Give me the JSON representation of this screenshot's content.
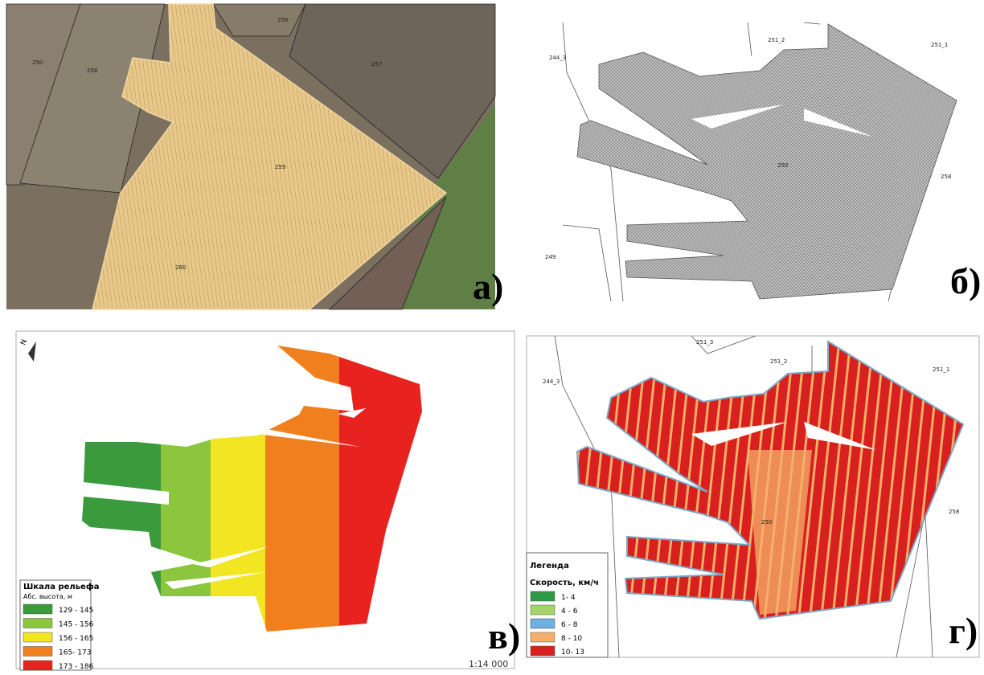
{
  "panels": [
    {
      "label": "а)",
      "fields": [
        "250",
        "258",
        "256",
        "257",
        "259",
        "260"
      ]
    },
    {
      "label": "б)",
      "fields": [
        "251_2",
        "251_1",
        "244_3",
        "250",
        "258",
        "249"
      ]
    },
    {
      "label": "в)",
      "north": "N",
      "scale": "1:14 000",
      "legend": {
        "title": "Шкала рельефа",
        "subtitle": "Абс. высота, м",
        "items": [
          {
            "label": "129 - 145",
            "color": "#3a9a3c"
          },
          {
            "label": "145 - 156",
            "color": "#8cc63f"
          },
          {
            "label": "156 - 165",
            "color": "#f2e521"
          },
          {
            "label": "165- 173",
            "color": "#f07f1e"
          },
          {
            "label": "173 - 186",
            "color": "#e8231f"
          }
        ]
      }
    },
    {
      "label": "г)",
      "fields": [
        "251_3",
        "251_2",
        "251_1",
        "244_3",
        "250",
        "258"
      ],
      "legend": {
        "title": "Легенда",
        "subtitle": "Скорость, км/ч",
        "items": [
          {
            "label": "1- 4",
            "color": "#2e9a48"
          },
          {
            "label": "4 - 6",
            "color": "#a6d46a"
          },
          {
            "label": "6 - 8",
            "color": "#6fb0e0"
          },
          {
            "label": "8 - 10",
            "color": "#f4b06a"
          },
          {
            "label": "10- 13",
            "color": "#d8201f"
          }
        ]
      }
    }
  ]
}
